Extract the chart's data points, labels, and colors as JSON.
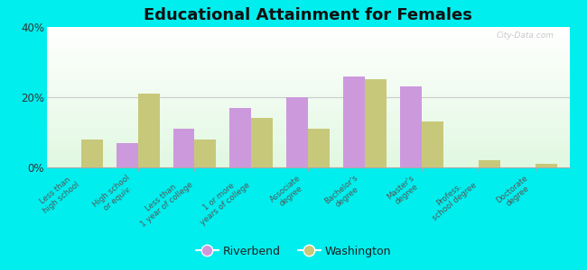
{
  "title": "Educational Attainment for Females",
  "categories": [
    "Less than\nhigh school",
    "High school\nor equiv.",
    "Less than\n1 year of college",
    "1 or more\nyears of college",
    "Associate\ndegree",
    "Bachelor's\ndegree",
    "Master's\ndegree",
    "Profess.\nschool degree",
    "Doctorate\ndegree"
  ],
  "riverbend": [
    0,
    7,
    11,
    17,
    20,
    26,
    23,
    0,
    0
  ],
  "washington": [
    8,
    21,
    8,
    14,
    11,
    25,
    13,
    2,
    1
  ],
  "riverbend_color": "#cc99dd",
  "washington_color": "#c8c87a",
  "background_color": "#00eeee",
  "ylim": [
    0,
    40
  ],
  "yticks": [
    0,
    20,
    40
  ],
  "ytick_labels": [
    "0%",
    "20%",
    "40%"
  ],
  "title_fontsize": 13,
  "legend_fontsize": 9,
  "bar_width": 0.38,
  "watermark": "City-Data.com"
}
